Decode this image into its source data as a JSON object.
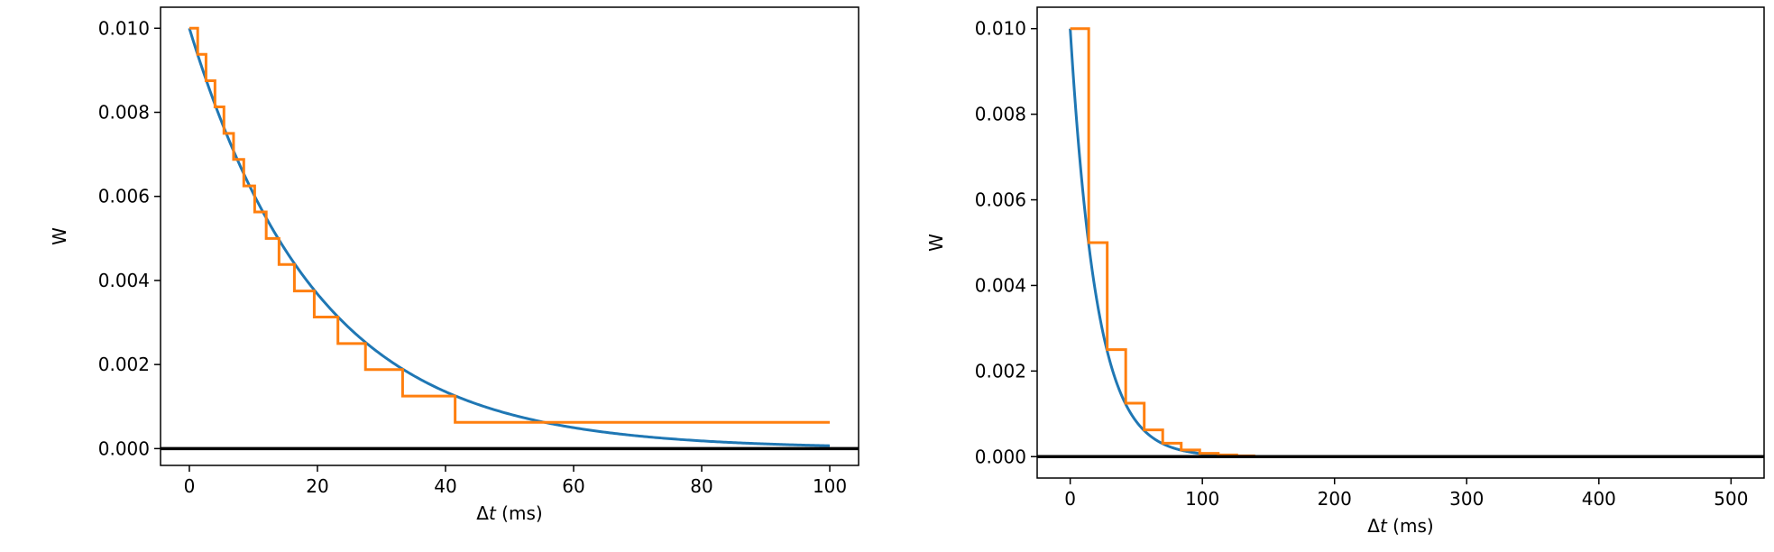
{
  "colors": {
    "analytic": "#1f77b4",
    "stepped": "#ff7f0e",
    "zero_line": "#000000"
  },
  "chart_data": [
    {
      "type": "line",
      "xlabel_prefix": "Δ",
      "xlabel_var": "t",
      "xlabel_suffix": " (ms)",
      "ylabel": "W",
      "xlim": [
        -4.5,
        104.5
      ],
      "ylim": [
        -0.0004,
        0.0105
      ],
      "xticks": [
        0,
        20,
        40,
        60,
        80,
        100
      ],
      "xtick_labels": [
        "0",
        "20",
        "40",
        "60",
        "80",
        "100"
      ],
      "yticks": [
        0.0,
        0.002,
        0.004,
        0.006,
        0.008,
        0.01
      ],
      "ytick_labels": [
        "0.000",
        "0.002",
        "0.004",
        "0.006",
        "0.008",
        "0.010"
      ],
      "hline_y": 0,
      "series": [
        {
          "kind": "exponential",
          "amplitude": 0.01,
          "tau_ms": 20,
          "x_range": [
            0,
            100
          ]
        },
        {
          "kind": "step",
          "x": [
            0,
            1.3,
            2.6,
            4,
            5.4,
            6.9,
            8.5,
            10.2,
            12,
            14,
            16.4,
            19.5,
            23.2,
            27.5,
            33.3,
            41.5,
            55.3,
            100
          ],
          "y": [
            0.01,
            0.00938,
            0.00875,
            0.00813,
            0.0075,
            0.00688,
            0.00625,
            0.00563,
            0.005,
            0.00438,
            0.00375,
            0.00313,
            0.0025,
            0.00188,
            0.00125,
            0.000625,
            0.000625,
            0.000625
          ]
        }
      ]
    },
    {
      "type": "line",
      "xlabel_prefix": "Δ",
      "xlabel_var": "t",
      "xlabel_suffix": " (ms)",
      "ylabel": "W",
      "xlim": [
        -25,
        525
      ],
      "ylim": [
        -0.0005,
        0.0105
      ],
      "xticks": [
        0,
        100,
        200,
        300,
        400,
        500
      ],
      "xtick_labels": [
        "0",
        "100",
        "200",
        "300",
        "400",
        "500"
      ],
      "yticks": [
        0.0,
        0.002,
        0.004,
        0.006,
        0.008,
        0.01
      ],
      "ytick_labels": [
        "0.000",
        "0.002",
        "0.004",
        "0.006",
        "0.008",
        "0.010"
      ],
      "hline_y": 0,
      "series": [
        {
          "kind": "exponential",
          "amplitude": 0.01,
          "tau_ms": 20,
          "x_range": [
            0,
            140
          ]
        },
        {
          "kind": "step",
          "x": [
            0,
            14,
            28,
            42,
            56,
            70,
            84,
            98,
            112,
            126,
            140
          ],
          "y": [
            0.01,
            0.005,
            0.0025,
            0.00125,
            0.000625,
            0.000313,
            0.000156,
            7.8e-05,
            3.9e-05,
            2e-05,
            2e-05
          ]
        }
      ]
    }
  ]
}
